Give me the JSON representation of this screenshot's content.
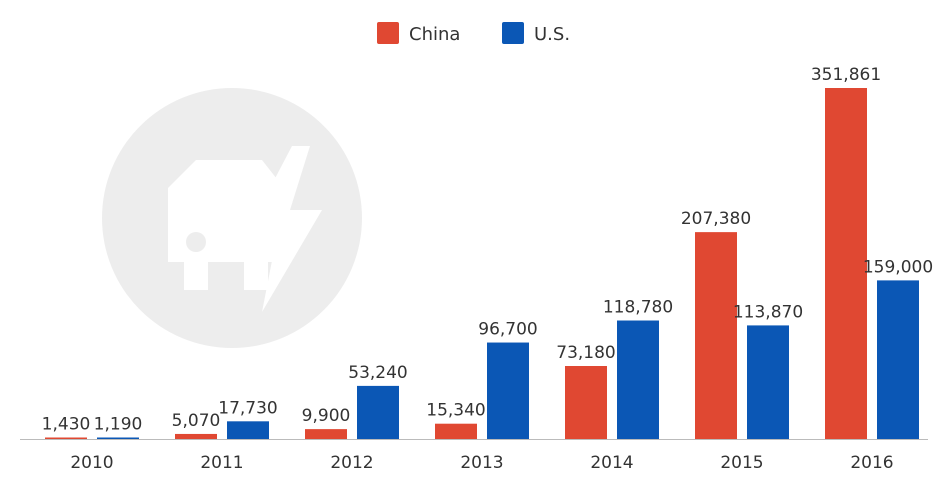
{
  "title_fragment": "",
  "chart_data": {
    "type": "bar",
    "categories": [
      "2010",
      "2011",
      "2012",
      "2013",
      "2014",
      "2015",
      "2016"
    ],
    "series": [
      {
        "name": "China",
        "color": "#e04832",
        "values": [
          1430,
          5070,
          9900,
          15340,
          73180,
          207380,
          351861
        ],
        "labels": [
          "1,430",
          "5,070",
          "9,900",
          "15,340",
          "73,180",
          "207,380",
          "351,861"
        ]
      },
      {
        "name": "U.S.",
        "color": "#0b57b5",
        "values": [
          1190,
          17730,
          53240,
          96700,
          118780,
          113870,
          159000
        ],
        "labels": [
          "1,190",
          "17,730",
          "53,240",
          "96,700",
          "118,780",
          "113,870",
          "159,000"
        ]
      }
    ],
    "ylim": [
      0,
      351861
    ],
    "legend": "top-center",
    "grid": false,
    "watermark_icon": "electric-car-bolt-icon"
  }
}
